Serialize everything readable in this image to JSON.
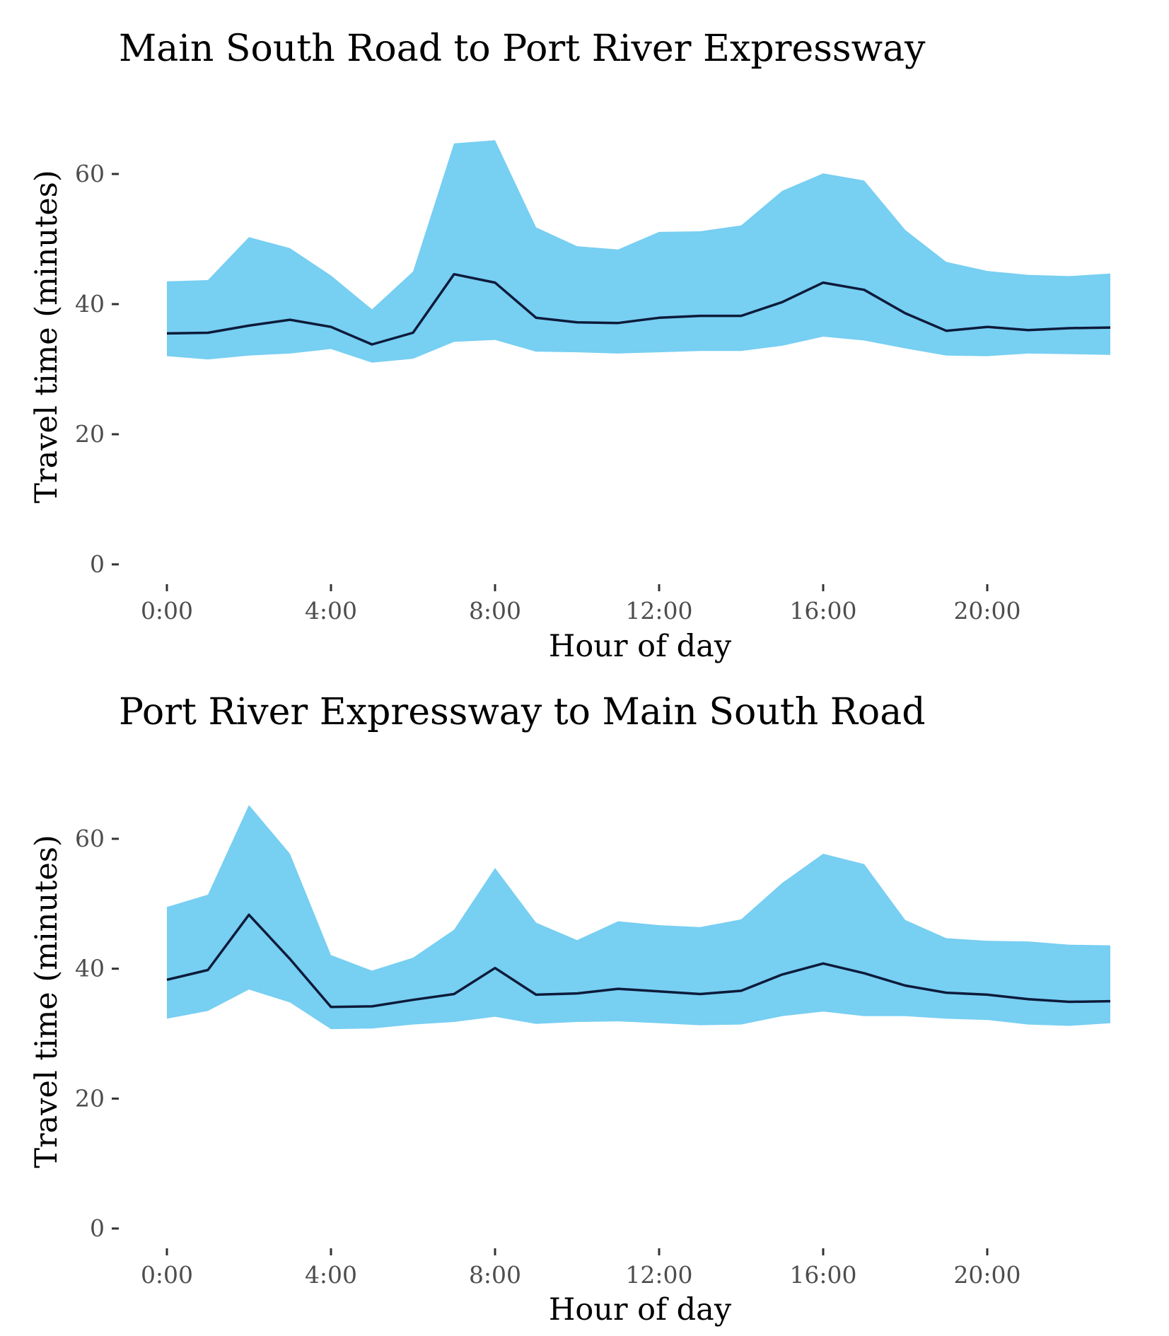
{
  "chart_data": [
    {
      "type": "area",
      "title": "Main South Road to Port River Expressway",
      "xlabel": "Hour of day",
      "ylabel": "Travel time (minutes)",
      "ylim": [
        0,
        70
      ],
      "y_ticks": [
        0,
        20,
        40,
        60
      ],
      "y_tick_labels": [
        "0",
        "20",
        "40",
        "60"
      ],
      "x_ticks": [
        0,
        4,
        8,
        12,
        16,
        20
      ],
      "x_tick_labels": [
        "0:00",
        "4:00",
        "8:00",
        "12:00",
        "16:00",
        "20:00"
      ],
      "xlim": [
        0,
        23
      ],
      "grid": false,
      "legend": "none",
      "band_color": "#77cff2",
      "line_color": "#0d1b3a",
      "x": [
        0,
        1,
        2,
        3,
        4,
        5,
        6,
        7,
        8,
        9,
        10,
        11,
        12,
        13,
        14,
        15,
        16,
        17,
        18,
        19,
        20,
        21,
        22,
        23
      ],
      "series": [
        {
          "role": "upper",
          "values": [
            43.5,
            43.7,
            50.3,
            48.6,
            44.4,
            39.2,
            45.0,
            64.7,
            65.2,
            51.8,
            48.9,
            48.4,
            51.1,
            51.2,
            52.1,
            57.4,
            60.1,
            59.0,
            51.4,
            46.5,
            45.1,
            44.5,
            44.3,
            44.7
          ]
        },
        {
          "role": "median",
          "values": [
            35.5,
            35.6,
            36.7,
            37.6,
            36.5,
            33.8,
            35.6,
            44.6,
            43.3,
            37.9,
            37.2,
            37.1,
            37.9,
            38.2,
            38.2,
            40.3,
            43.3,
            42.2,
            38.6,
            35.9,
            36.5,
            36.0,
            36.3,
            36.4
          ]
        },
        {
          "role": "lower",
          "values": [
            32.0,
            31.5,
            32.1,
            32.4,
            33.1,
            31.0,
            31.6,
            34.2,
            34.5,
            32.7,
            32.6,
            32.4,
            32.6,
            32.8,
            32.8,
            33.6,
            35.0,
            34.4,
            33.2,
            32.1,
            32.0,
            32.4,
            32.3,
            32.2
          ]
        }
      ]
    },
    {
      "type": "area",
      "title": "Port River Expressway to Main South Road",
      "xlabel": "Hour of day",
      "ylabel": "Travel time (minutes)",
      "ylim": [
        0,
        70
      ],
      "y_ticks": [
        0,
        20,
        40,
        60
      ],
      "y_tick_labels": [
        "0",
        "20",
        "40",
        "60"
      ],
      "x_ticks": [
        0,
        4,
        8,
        12,
        16,
        20
      ],
      "x_tick_labels": [
        "0:00",
        "4:00",
        "8:00",
        "12:00",
        "16:00",
        "20:00"
      ],
      "xlim": [
        0,
        23
      ],
      "grid": false,
      "legend": "none",
      "band_color": "#77cff2",
      "line_color": "#0d1b3a",
      "x": [
        0,
        1,
        2,
        3,
        4,
        5,
        6,
        7,
        8,
        9,
        10,
        11,
        12,
        13,
        14,
        15,
        16,
        17,
        18,
        19,
        20,
        21,
        22,
        23
      ],
      "series": [
        {
          "role": "upper",
          "values": [
            49.5,
            51.4,
            65.2,
            57.7,
            42.1,
            39.7,
            41.7,
            46.0,
            55.5,
            47.1,
            44.4,
            47.3,
            46.7,
            46.4,
            47.6,
            53.2,
            57.7,
            56.1,
            47.5,
            44.7,
            44.3,
            44.2,
            43.7,
            43.6
          ]
        },
        {
          "role": "median",
          "values": [
            38.3,
            39.8,
            48.3,
            41.5,
            34.1,
            34.2,
            35.2,
            36.1,
            40.1,
            36.0,
            36.2,
            36.9,
            36.5,
            36.1,
            36.6,
            39.1,
            40.8,
            39.3,
            37.4,
            36.3,
            36.0,
            35.3,
            34.9,
            35.0
          ]
        },
        {
          "role": "lower",
          "values": [
            32.3,
            33.5,
            36.8,
            34.8,
            30.7,
            30.8,
            31.4,
            31.8,
            32.6,
            31.5,
            31.8,
            31.9,
            31.6,
            31.3,
            31.4,
            32.7,
            33.4,
            32.7,
            32.7,
            32.3,
            32.1,
            31.4,
            31.2,
            31.6
          ]
        }
      ]
    }
  ]
}
